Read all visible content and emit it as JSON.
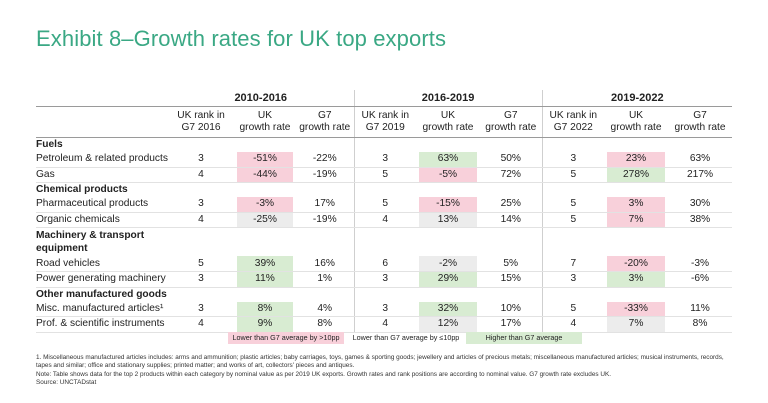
{
  "title": "Exhibit 8–Growth rates for UK top exports",
  "periods": [
    "2010-2016",
    "2016-2019",
    "2019-2022"
  ],
  "subheaders": [
    [
      "UK rank in",
      "G7 2016",
      "UK",
      "growth rate",
      "G7",
      "growth rate"
    ],
    [
      "UK rank in",
      "G7 2019",
      "UK",
      "growth rate",
      "G7",
      "growth rate"
    ],
    [
      "UK rank in",
      "G7 2022",
      "UK",
      "growth rate",
      "G7",
      "growth rate"
    ]
  ],
  "categories": {
    "fuels": "Fuels",
    "chemical": "Chemical products",
    "machinery": "Machinery & transport equipment",
    "other": "Other manufactured goods"
  },
  "rows": [
    {
      "label": "Petroleum & related products",
      "v": [
        "3",
        "-51%",
        "-22%",
        "3",
        "63%",
        "50%",
        "3",
        "23%",
        "63%"
      ]
    },
    {
      "label": "Gas",
      "v": [
        "4",
        "-44%",
        "-19%",
        "5",
        "-5%",
        "72%",
        "5",
        "278%",
        "217%"
      ]
    },
    {
      "label": "Pharmaceutical products",
      "v": [
        "3",
        "-3%",
        "17%",
        "5",
        "-15%",
        "25%",
        "5",
        "3%",
        "30%"
      ]
    },
    {
      "label": "Organic chemicals",
      "v": [
        "4",
        "-25%",
        "-19%",
        "4",
        "13%",
        "14%",
        "5",
        "7%",
        "38%"
      ]
    },
    {
      "label": "Road vehicles",
      "v": [
        "5",
        "39%",
        "16%",
        "6",
        "-2%",
        "5%",
        "7",
        "-20%",
        "-3%"
      ]
    },
    {
      "label": "Power generating machinery",
      "v": [
        "3",
        "11%",
        "1%",
        "3",
        "29%",
        "15%",
        "3",
        "3%",
        "-6%"
      ]
    },
    {
      "label": "Misc. manufactured articles¹",
      "v": [
        "3",
        "8%",
        "4%",
        "3",
        "32%",
        "10%",
        "5",
        "-33%",
        "11%"
      ]
    },
    {
      "label": "Prof. & scientific instruments",
      "v": [
        "4",
        "9%",
        "8%",
        "4",
        "12%",
        "17%",
        "4",
        "7%",
        "8%"
      ]
    }
  ],
  "highlight_colors": {
    "lower_gt10": "#f8d0da",
    "lower_le10": "#ececec",
    "higher": "#d8ecd2",
    "title": "#3aa884"
  },
  "legend": {
    "lower_gt10": "Lower than G7 average by >10pp",
    "lower_le10": "Lower than G7 average by ≤10pp",
    "higher": "Higher than G7 average"
  },
  "notes": {
    "n1a": "1. Miscellaneous manufactured articles includes: arms and ammunition; plastic articles; baby carriages, toys, games & sporting goods; jewellery and articles of precious metals; miscellaneous",
    "n1b": "manufactured articles; musical instruments, records, tapes and similar; office and stationary supplies; printed matter; and works of art, collectors' pieces and antiques.",
    "n2": "Note: Table shows data for the top 2 products within each category by nominal value as per 2019 UK exports. Growth rates and rank positions are according to nominal value. G7 growth rate excludes UK.",
    "source": "Source: UNCTADstat"
  }
}
